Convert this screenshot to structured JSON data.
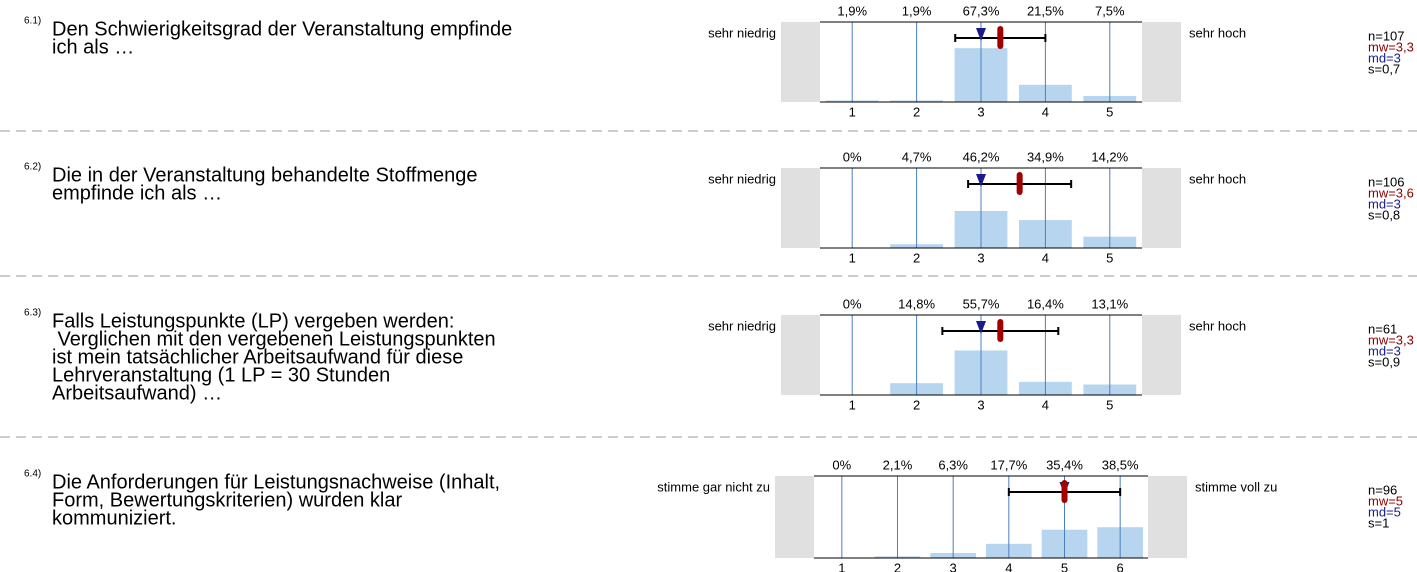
{
  "items": [
    {
      "number": "6.1)",
      "question_lines": [
        "Den Schwierigkeitsgrad der Veranstaltung empfinde",
        "ich als …"
      ],
      "left_label": "sehr niedrig",
      "right_label": "sehr hoch",
      "categories": [
        "1",
        "2",
        "3",
        "4",
        "5"
      ],
      "values": [
        1.9,
        1.9,
        67.3,
        21.5,
        7.5
      ],
      "value_labels": [
        "1,9%",
        "1,9%",
        "67,3%",
        "21,5%",
        "7,5%"
      ],
      "n": {
        "value": 107,
        "label": "n=107"
      },
      "mean": {
        "value": 3.3,
        "label": "mw=3,3"
      },
      "median": {
        "value": 3,
        "label": "md=3"
      },
      "sd": {
        "value": 0.7,
        "label": "s=0,7"
      }
    },
    {
      "number": "6.2)",
      "question_lines": [
        "Die in der Veranstaltung behandelte Stoffmenge",
        "empfinde ich als …"
      ],
      "left_label": "sehr niedrig",
      "right_label": "sehr hoch",
      "categories": [
        "1",
        "2",
        "3",
        "4",
        "5"
      ],
      "values": [
        0,
        4.7,
        46.2,
        34.9,
        14.2
      ],
      "value_labels": [
        "0%",
        "4,7%",
        "46,2%",
        "34,9%",
        "14,2%"
      ],
      "n": {
        "value": 106,
        "label": "n=106"
      },
      "mean": {
        "value": 3.6,
        "label": "mw=3,6"
      },
      "median": {
        "value": 3,
        "label": "md=3"
      },
      "sd": {
        "value": 0.8,
        "label": "s=0,8"
      }
    },
    {
      "number": "6.3)",
      "question_lines": [
        "Falls Leistungspunkte (LP) vergeben werden:",
        " Verglichen mit den vergebenen Leistungspunkten",
        "ist mein tatsächlicher Arbeitsaufwand für diese",
        "Lehrveranstaltung (1 LP = 30 Stunden",
        "Arbeitsaufwand) …"
      ],
      "left_label": "sehr niedrig",
      "right_label": "sehr hoch",
      "categories": [
        "1",
        "2",
        "3",
        "4",
        "5"
      ],
      "values": [
        0,
        14.8,
        55.7,
        16.4,
        13.1
      ],
      "value_labels": [
        "0%",
        "14,8%",
        "55,7%",
        "16,4%",
        "13,1%"
      ],
      "n": {
        "value": 61,
        "label": "n=61"
      },
      "mean": {
        "value": 3.3,
        "label": "mw=3,3"
      },
      "median": {
        "value": 3,
        "label": "md=3"
      },
      "sd": {
        "value": 0.9,
        "label": "s=0,9"
      }
    },
    {
      "number": "6.4)",
      "question_lines": [
        "Die Anforderungen für Leistungsnachweise (Inhalt,",
        "Form, Bewertungskriterien) wurden klar",
        "kommuniziert."
      ],
      "left_label": "stimme gar nicht zu",
      "right_label": "stimme voll zu",
      "categories": [
        "1",
        "2",
        "3",
        "4",
        "5",
        "6"
      ],
      "values": [
        0,
        2.1,
        6.3,
        17.7,
        35.4,
        38.5
      ],
      "value_labels": [
        "0%",
        "2,1%",
        "6,3%",
        "17,7%",
        "35,4%",
        "38,5%"
      ],
      "n": {
        "value": 96,
        "label": "n=96"
      },
      "mean": {
        "value": 5,
        "label": "mw=5"
      },
      "median": {
        "value": 5,
        "label": "md=5"
      },
      "sd": {
        "value": 1,
        "label": "s=1"
      }
    }
  ]
}
